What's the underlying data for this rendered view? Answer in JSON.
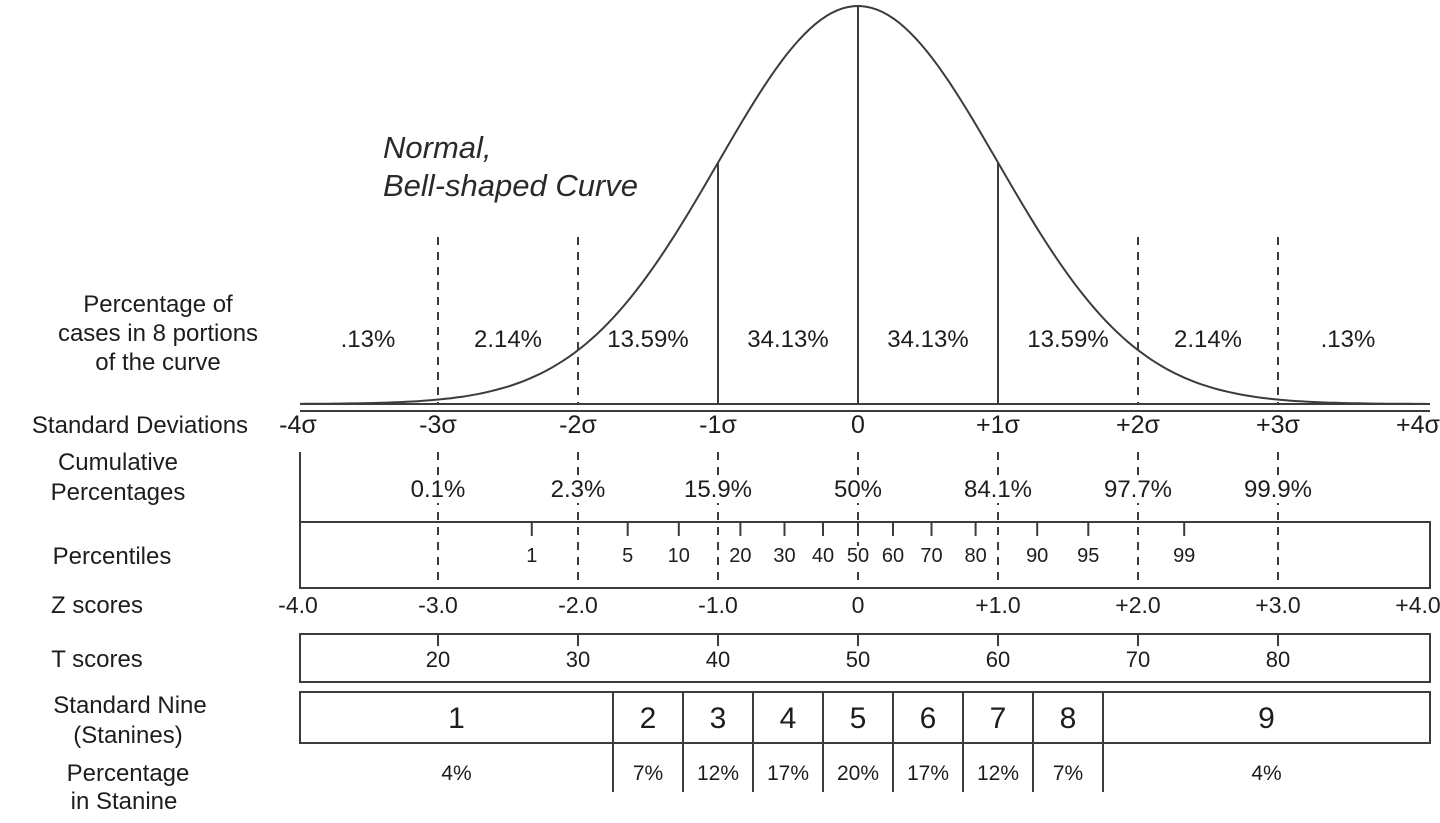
{
  "figure_title": {
    "line1": "Normal,",
    "line2": "Bell-shaped Curve"
  },
  "row_labels": {
    "portions_line1": "Percentage of",
    "portions_line2": "cases in 8 portions",
    "portions_line3": "of the curve",
    "std_dev": "Standard Deviations",
    "cumulative_line1": "Cumulative",
    "cumulative_line2": "Percentages",
    "percentiles": "Percentiles",
    "z_scores": "Z scores",
    "t_scores": "T scores",
    "stanines_line1": "Standard Nine",
    "stanines_line2": "(Stanines)",
    "stanine_pct_line1": "Percentage",
    "stanine_pct_line2": "in Stanine"
  },
  "chart_data": {
    "type": "line",
    "title": "Normal, Bell-shaped Curve",
    "description": "Standard normal (bell-shaped) curve with percentage of cases in 8 portions, cumulative percentages, percentiles, z scores, T scores, stanines and stanine percentages",
    "x_axis": {
      "label": "Standard Deviations",
      "tick_labels": [
        "-4σ",
        "-3σ",
        "-2σ",
        "-1σ",
        "0",
        "+1σ",
        "+2σ",
        "+3σ",
        "+4σ"
      ],
      "tick_z": [
        -4,
        -3,
        -2,
        -1,
        0,
        1,
        2,
        3,
        4
      ],
      "range_z": [
        -4,
        4
      ]
    },
    "portions": {
      "labels": [
        ".13%",
        "2.14%",
        "13.59%",
        "34.13%",
        "34.13%",
        "13.59%",
        "2.14%",
        ".13%"
      ],
      "values_percent": [
        0.13,
        2.14,
        13.59,
        34.13,
        34.13,
        13.59,
        2.14,
        0.13
      ]
    },
    "cumulative": {
      "labels": [
        "0.1%",
        "2.3%",
        "15.9%",
        "50%",
        "84.1%",
        "97.7%",
        "99.9%"
      ],
      "at_z": [
        -3,
        -2,
        -1,
        0,
        1,
        2,
        3
      ]
    },
    "percentiles": {
      "labels": [
        "1",
        "5",
        "10",
        "20",
        "30",
        "40",
        "50",
        "60",
        "70",
        "80",
        "90",
        "95",
        "99"
      ],
      "z": [
        -2.33,
        -1.645,
        -1.28,
        -0.84,
        -0.525,
        -0.25,
        0,
        0.25,
        0.525,
        0.84,
        1.28,
        1.645,
        2.33
      ]
    },
    "z_scores": {
      "labels": [
        "-4.0",
        "-3.0",
        "-2.0",
        "-1.0",
        "0",
        "+1.0",
        "+2.0",
        "+3.0",
        "+4.0"
      ],
      "z": [
        -4,
        -3,
        -2,
        -1,
        0,
        1,
        2,
        3,
        4
      ]
    },
    "t_scores": {
      "labels": [
        "20",
        "30",
        "40",
        "50",
        "60",
        "70",
        "80"
      ],
      "z": [
        -3,
        -2,
        -1,
        0,
        1,
        2,
        3
      ]
    },
    "stanines": {
      "labels": [
        "1",
        "2",
        "3",
        "4",
        "5",
        "6",
        "7",
        "8",
        "9"
      ],
      "percentages": [
        "4%",
        "7%",
        "12%",
        "17%",
        "20%",
        "17%",
        "12%",
        "7%",
        "4%"
      ],
      "boundaries_z": [
        -1.75,
        -1.25,
        -0.75,
        -0.25,
        0.25,
        0.75,
        1.25,
        1.75
      ]
    },
    "curve": {
      "distribution": "standard normal",
      "solid_guides_z": [
        -1,
        0,
        1
      ],
      "dashed_guides_z": [
        -3,
        -2,
        2,
        3
      ]
    }
  }
}
